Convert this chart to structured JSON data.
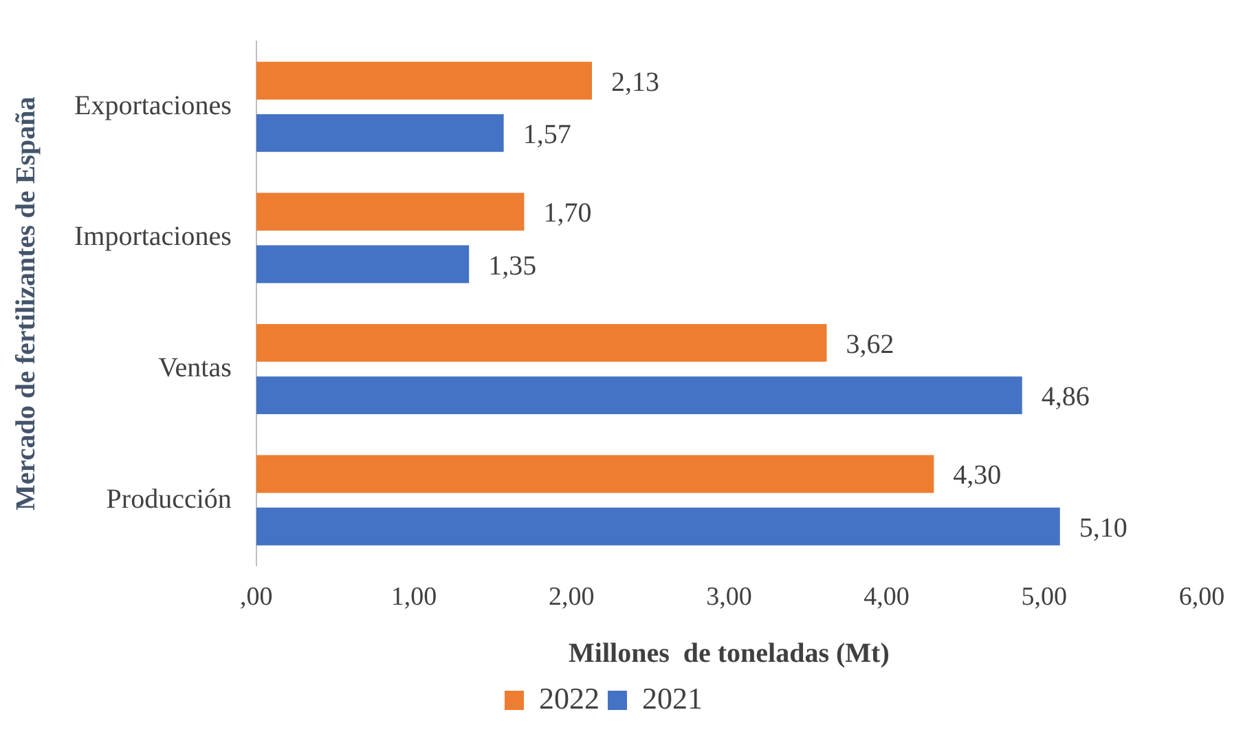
{
  "chart_data": {
    "type": "bar",
    "orientation": "horizontal",
    "xlabel": "Millones  de toneladas (Mt)",
    "ylabel": "Mercado de fertilizantes de España",
    "categories": [
      "Exportaciones",
      "Importaciones",
      "Ventas",
      "Producción"
    ],
    "series": [
      {
        "name": "2022",
        "color": "#ed7d31",
        "values": [
          2.13,
          1.7,
          3.62,
          4.3
        ],
        "value_labels": [
          "2,13",
          "1,70",
          "3,62",
          "4,30"
        ]
      },
      {
        "name": "2021",
        "color": "#4472c4",
        "values": [
          1.57,
          1.35,
          4.86,
          5.1
        ],
        "value_labels": [
          "1,57",
          "1,35",
          "4,86",
          "5,10"
        ]
      }
    ],
    "xlim": [
      0,
      6
    ],
    "xticks": [
      {
        "value": 0,
        "label": ",00"
      },
      {
        "value": 1,
        "label": "1,00"
      },
      {
        "value": 2,
        "label": "2,00"
      },
      {
        "value": 3,
        "label": "3,00"
      },
      {
        "value": 4,
        "label": "4,00"
      },
      {
        "value": 5,
        "label": "5,00"
      },
      {
        "value": 6,
        "label": "6,00"
      }
    ],
    "grid": false,
    "legend": "bottom"
  }
}
